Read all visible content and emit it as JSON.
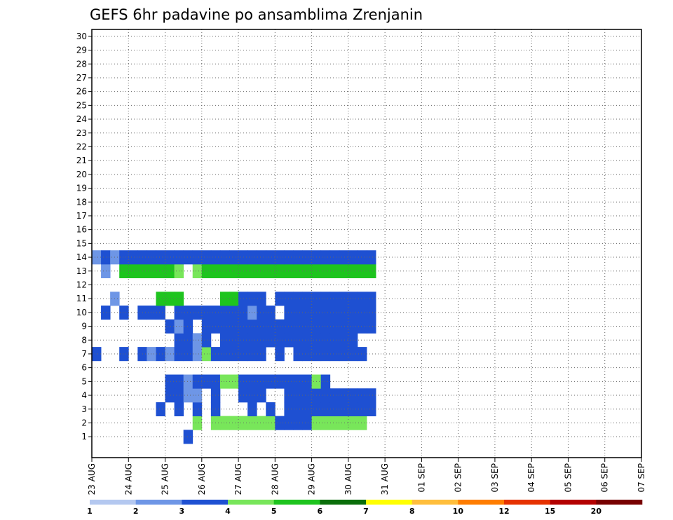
{
  "chart_data": {
    "type": "heatmap",
    "title": "GEFS 6hr padavine po ansamblima Zrenjanin",
    "xlabel": "",
    "ylabel": "",
    "x_ticks": [
      "23 AUG",
      "24 AUG",
      "25 AUG",
      "26 AUG",
      "27 AUG",
      "28 AUG",
      "29 AUG",
      "30 AUG",
      "31 AUG",
      "01 SEP",
      "02 SEP",
      "03 SEP",
      "04 SEP",
      "05 SEP",
      "06 SEP",
      "07 SEP"
    ],
    "y_ticks": [
      "1",
      "2",
      "3",
      "4",
      "5",
      "6",
      "7",
      "8",
      "9",
      "10",
      "11",
      "12",
      "13",
      "14",
      "15",
      "16",
      "17",
      "18",
      "19",
      "20",
      "21",
      "22",
      "23",
      "24",
      "25",
      "26",
      "27",
      "28",
      "29",
      "30"
    ],
    "xlim": [
      "23 AUG",
      "07 SEP"
    ],
    "ylim": [
      0,
      30
    ],
    "grid": true,
    "legend": "bottom",
    "colorbar": {
      "labels": [
        "1",
        "2",
        "3",
        "4",
        "5",
        "6",
        "7",
        "8",
        "10",
        "12",
        "15",
        "20"
      ],
      "colors": [
        "#b4c8f0",
        "#6e96e6",
        "#1e50d2",
        "#78e65a",
        "#1ec41e",
        "#0a6e0a",
        "#ffff00",
        "#ffbe3c",
        "#ff7d00",
        "#e63200",
        "#b40000",
        "#780000"
      ]
    },
    "note_units": "x in 6-hour steps from 23 AUG 00Z, y = ensemble member",
    "cells": [
      [
        10,
        0,
        2
      ],
      [
        11,
        1,
        3
      ],
      [
        13,
        1,
        3
      ],
      [
        14,
        1,
        3
      ],
      [
        15,
        1,
        3
      ],
      [
        16,
        1,
        3
      ],
      [
        17,
        1,
        3
      ],
      [
        18,
        1,
        3
      ],
      [
        19,
        1,
        3
      ],
      [
        20,
        1,
        2
      ],
      [
        21,
        1,
        2
      ],
      [
        22,
        1,
        2
      ],
      [
        23,
        1,
        2
      ],
      [
        24,
        1,
        3
      ],
      [
        25,
        1,
        3
      ],
      [
        26,
        1,
        3
      ],
      [
        27,
        1,
        3
      ],
      [
        28,
        1,
        3
      ],
      [
        29,
        1,
        3
      ],
      [
        7,
        2,
        2
      ],
      [
        9,
        2,
        2
      ],
      [
        11,
        2,
        2
      ],
      [
        13,
        2,
        2
      ],
      [
        17,
        2,
        2
      ],
      [
        19,
        2,
        2
      ],
      [
        21,
        2,
        2
      ],
      [
        22,
        2,
        2
      ],
      [
        23,
        2,
        2
      ],
      [
        24,
        2,
        2
      ],
      [
        25,
        2,
        2
      ],
      [
        26,
        2,
        2
      ],
      [
        27,
        2,
        2
      ],
      [
        28,
        2,
        2
      ],
      [
        29,
        2,
        2
      ],
      [
        30,
        2,
        2
      ],
      [
        8,
        3,
        2
      ],
      [
        9,
        3,
        2
      ],
      [
        10,
        3,
        1
      ],
      [
        11,
        3,
        1
      ],
      [
        13,
        3,
        2
      ],
      [
        16,
        3,
        2
      ],
      [
        17,
        3,
        2
      ],
      [
        18,
        3,
        2
      ],
      [
        21,
        3,
        2
      ],
      [
        22,
        3,
        2
      ],
      [
        23,
        3,
        2
      ],
      [
        24,
        3,
        2
      ],
      [
        25,
        3,
        2
      ],
      [
        26,
        3,
        2
      ],
      [
        27,
        3,
        2
      ],
      [
        28,
        3,
        2
      ],
      [
        29,
        3,
        2
      ],
      [
        30,
        3,
        2
      ],
      [
        8,
        4,
        2
      ],
      [
        9,
        4,
        2
      ],
      [
        10,
        4,
        1
      ],
      [
        11,
        4,
        2
      ],
      [
        12,
        4,
        2
      ],
      [
        13,
        4,
        2
      ],
      [
        14,
        4,
        3
      ],
      [
        15,
        4,
        3
      ],
      [
        16,
        4,
        2
      ],
      [
        17,
        4,
        2
      ],
      [
        18,
        4,
        2
      ],
      [
        19,
        4,
        2
      ],
      [
        20,
        4,
        2
      ],
      [
        21,
        4,
        2
      ],
      [
        22,
        4,
        2
      ],
      [
        23,
        4,
        2
      ],
      [
        24,
        4,
        3
      ],
      [
        25,
        4,
        2
      ],
      [
        0,
        6,
        2
      ],
      [
        3,
        6,
        2
      ],
      [
        5,
        6,
        2
      ],
      [
        6,
        6,
        1
      ],
      [
        7,
        6,
        2
      ],
      [
        8,
        6,
        1
      ],
      [
        9,
        6,
        2
      ],
      [
        10,
        6,
        2
      ],
      [
        11,
        6,
        1
      ],
      [
        12,
        6,
        3
      ],
      [
        13,
        6,
        2
      ],
      [
        14,
        6,
        2
      ],
      [
        15,
        6,
        2
      ],
      [
        16,
        6,
        2
      ],
      [
        17,
        6,
        2
      ],
      [
        18,
        6,
        2
      ],
      [
        20,
        6,
        2
      ],
      [
        22,
        6,
        2
      ],
      [
        23,
        6,
        2
      ],
      [
        24,
        6,
        2
      ],
      [
        25,
        6,
        2
      ],
      [
        26,
        6,
        2
      ],
      [
        27,
        6,
        2
      ],
      [
        28,
        6,
        2
      ],
      [
        29,
        6,
        2
      ],
      [
        9,
        7,
        2
      ],
      [
        10,
        7,
        2
      ],
      [
        11,
        7,
        1
      ],
      [
        12,
        7,
        2
      ],
      [
        14,
        7,
        2
      ],
      [
        15,
        7,
        2
      ],
      [
        16,
        7,
        2
      ],
      [
        17,
        7,
        2
      ],
      [
        18,
        7,
        2
      ],
      [
        19,
        7,
        2
      ],
      [
        20,
        7,
        2
      ],
      [
        21,
        7,
        2
      ],
      [
        22,
        7,
        2
      ],
      [
        23,
        7,
        2
      ],
      [
        24,
        7,
        2
      ],
      [
        25,
        7,
        2
      ],
      [
        26,
        7,
        2
      ],
      [
        27,
        7,
        2
      ],
      [
        28,
        7,
        2
      ],
      [
        8,
        8,
        2
      ],
      [
        9,
        8,
        1
      ],
      [
        10,
        8,
        2
      ],
      [
        12,
        8,
        2
      ],
      [
        13,
        8,
        2
      ],
      [
        14,
        8,
        2
      ],
      [
        15,
        8,
        2
      ],
      [
        16,
        8,
        2
      ],
      [
        17,
        8,
        2
      ],
      [
        18,
        8,
        2
      ],
      [
        19,
        8,
        2
      ],
      [
        20,
        8,
        2
      ],
      [
        21,
        8,
        2
      ],
      [
        22,
        8,
        2
      ],
      [
        23,
        8,
        2
      ],
      [
        24,
        8,
        2
      ],
      [
        25,
        8,
        2
      ],
      [
        26,
        8,
        2
      ],
      [
        27,
        8,
        2
      ],
      [
        28,
        8,
        2
      ],
      [
        29,
        8,
        2
      ],
      [
        30,
        8,
        2
      ],
      [
        1,
        9,
        2
      ],
      [
        3,
        9,
        2
      ],
      [
        5,
        9,
        2
      ],
      [
        6,
        9,
        2
      ],
      [
        7,
        9,
        2
      ],
      [
        9,
        9,
        2
      ],
      [
        10,
        9,
        2
      ],
      [
        11,
        9,
        2
      ],
      [
        12,
        9,
        2
      ],
      [
        13,
        9,
        2
      ],
      [
        14,
        9,
        2
      ],
      [
        15,
        9,
        2
      ],
      [
        16,
        9,
        2
      ],
      [
        17,
        9,
        1
      ],
      [
        18,
        9,
        2
      ],
      [
        19,
        9,
        2
      ],
      [
        21,
        9,
        2
      ],
      [
        22,
        9,
        2
      ],
      [
        23,
        9,
        2
      ],
      [
        24,
        9,
        2
      ],
      [
        25,
        9,
        2
      ],
      [
        26,
        9,
        2
      ],
      [
        27,
        9,
        2
      ],
      [
        28,
        9,
        2
      ],
      [
        29,
        9,
        2
      ],
      [
        30,
        9,
        2
      ],
      [
        2,
        10,
        1
      ],
      [
        7,
        10,
        4
      ],
      [
        8,
        10,
        4
      ],
      [
        9,
        10,
        4
      ],
      [
        14,
        10,
        4
      ],
      [
        15,
        10,
        4
      ],
      [
        16,
        10,
        2
      ],
      [
        17,
        10,
        2
      ],
      [
        18,
        10,
        2
      ],
      [
        20,
        10,
        2
      ],
      [
        21,
        10,
        2
      ],
      [
        22,
        10,
        2
      ],
      [
        23,
        10,
        2
      ],
      [
        24,
        10,
        2
      ],
      [
        25,
        10,
        2
      ],
      [
        26,
        10,
        2
      ],
      [
        27,
        10,
        2
      ],
      [
        28,
        10,
        2
      ],
      [
        29,
        10,
        2
      ],
      [
        30,
        10,
        2
      ],
      [
        1,
        12,
        1
      ],
      [
        3,
        12,
        4
      ],
      [
        4,
        12,
        4
      ],
      [
        5,
        12,
        4
      ],
      [
        6,
        12,
        4
      ],
      [
        7,
        12,
        4
      ],
      [
        8,
        12,
        4
      ],
      [
        9,
        12,
        3
      ],
      [
        11,
        12,
        3
      ],
      [
        12,
        12,
        4
      ],
      [
        13,
        12,
        4
      ],
      [
        14,
        12,
        4
      ],
      [
        15,
        12,
        4
      ],
      [
        16,
        12,
        4
      ],
      [
        17,
        12,
        4
      ],
      [
        18,
        12,
        4
      ],
      [
        19,
        12,
        4
      ],
      [
        20,
        12,
        4
      ],
      [
        21,
        12,
        4
      ],
      [
        22,
        12,
        4
      ],
      [
        23,
        12,
        4
      ],
      [
        24,
        12,
        4
      ],
      [
        25,
        12,
        4
      ],
      [
        26,
        12,
        4
      ],
      [
        27,
        12,
        4
      ],
      [
        28,
        12,
        4
      ],
      [
        29,
        12,
        4
      ],
      [
        30,
        12,
        4
      ],
      [
        0,
        13,
        1
      ],
      [
        1,
        13,
        2
      ],
      [
        2,
        13,
        1
      ],
      [
        3,
        13,
        2
      ],
      [
        4,
        13,
        2
      ],
      [
        5,
        13,
        2
      ],
      [
        6,
        13,
        2
      ],
      [
        7,
        13,
        2
      ],
      [
        8,
        13,
        2
      ],
      [
        9,
        13,
        2
      ],
      [
        10,
        13,
        2
      ],
      [
        11,
        13,
        2
      ],
      [
        12,
        13,
        2
      ],
      [
        13,
        13,
        2
      ],
      [
        14,
        13,
        2
      ],
      [
        15,
        13,
        2
      ],
      [
        16,
        13,
        2
      ],
      [
        17,
        13,
        2
      ],
      [
        18,
        13,
        2
      ],
      [
        19,
        13,
        2
      ],
      [
        20,
        13,
        2
      ],
      [
        21,
        13,
        2
      ],
      [
        22,
        13,
        2
      ],
      [
        23,
        13,
        2
      ],
      [
        24,
        13,
        2
      ],
      [
        25,
        13,
        2
      ],
      [
        26,
        13,
        2
      ],
      [
        27,
        13,
        2
      ],
      [
        28,
        13,
        2
      ],
      [
        29,
        13,
        2
      ],
      [
        30,
        13,
        2
      ]
    ]
  }
}
